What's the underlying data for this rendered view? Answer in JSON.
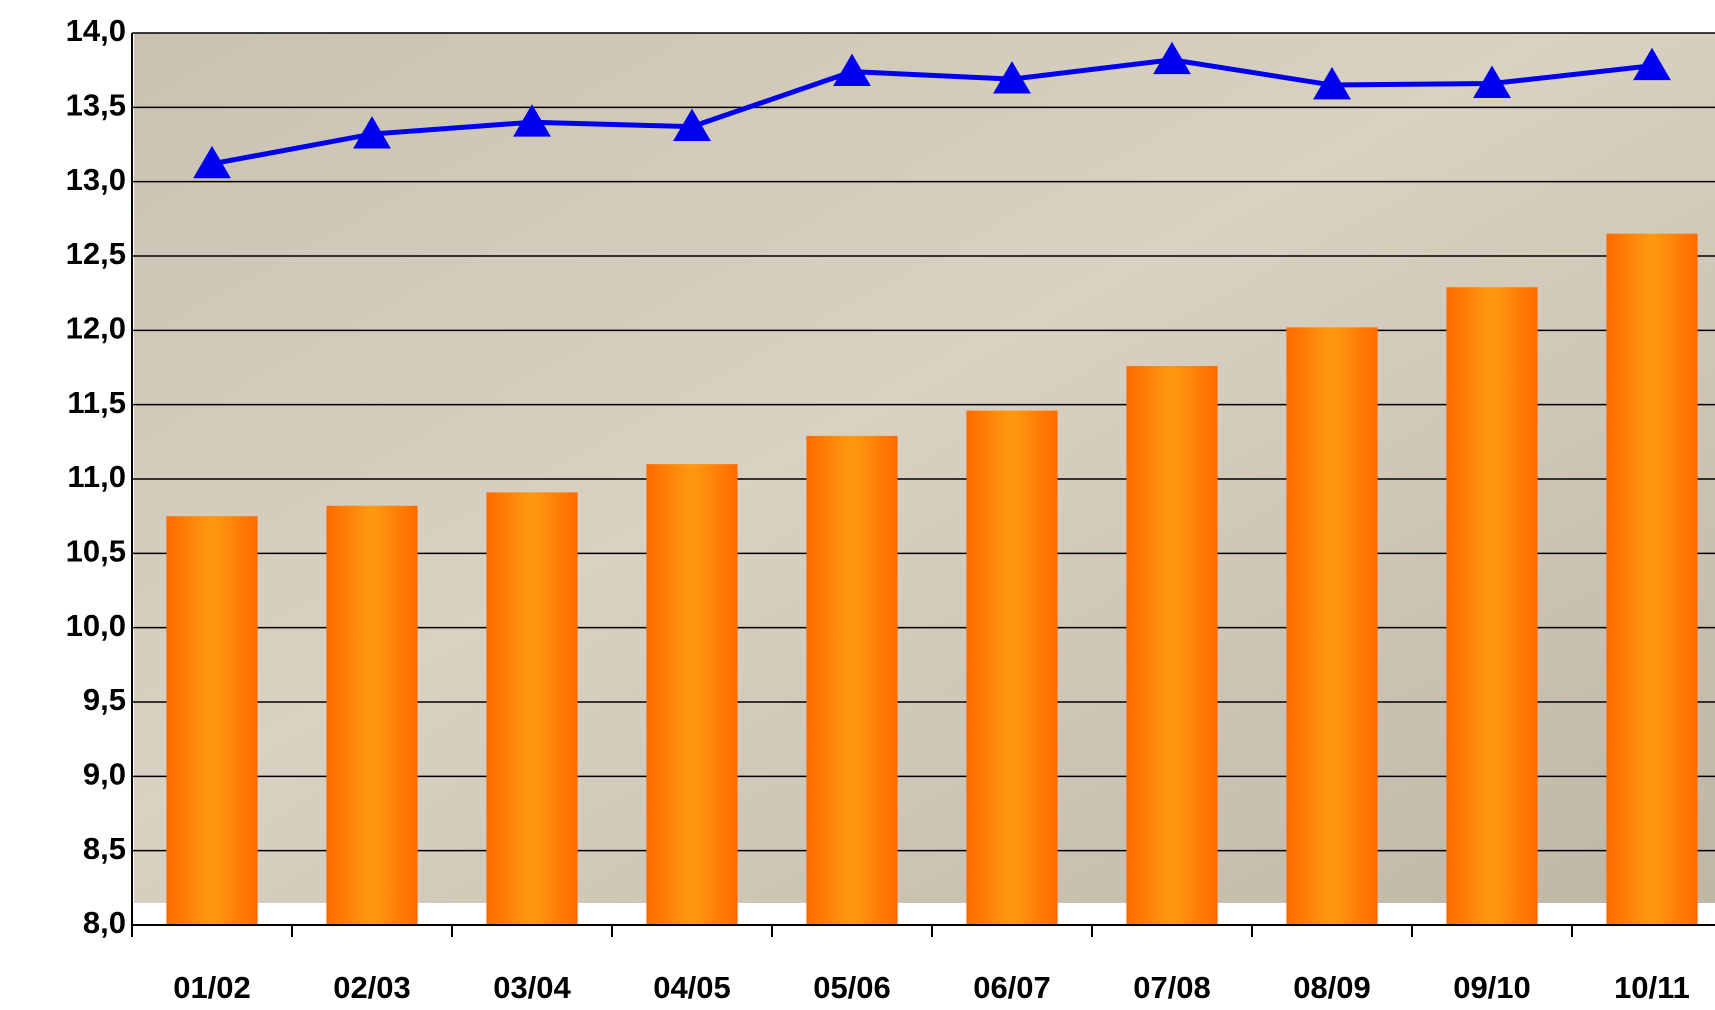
{
  "chart_data": {
    "type": "bar-line",
    "categories": [
      "01/02",
      "02/03",
      "03/04",
      "04/05",
      "05/06",
      "06/07",
      "07/08",
      "08/09",
      "09/10",
      "10/11"
    ],
    "series": [
      {
        "type": "bar",
        "color": "#ff7f00",
        "values": [
          10.75,
          10.82,
          10.91,
          11.1,
          11.29,
          11.46,
          11.76,
          12.02,
          12.29,
          12.65
        ]
      },
      {
        "type": "line",
        "color": "#0000ee",
        "values": [
          13.12,
          13.32,
          13.4,
          13.37,
          13.74,
          13.69,
          13.82,
          13.65,
          13.66,
          13.78
        ]
      }
    ],
    "ylim": [
      8.0,
      14.0
    ],
    "yticks": [
      {
        "value": 8.0,
        "label": "8,0"
      },
      {
        "value": 8.5,
        "label": "8,5"
      },
      {
        "value": 9.0,
        "label": "9,0"
      },
      {
        "value": 9.5,
        "label": "9,5"
      },
      {
        "value": 10.0,
        "label": "10,0"
      },
      {
        "value": 10.5,
        "label": "10,5"
      },
      {
        "value": 11.0,
        "label": "11,0"
      },
      {
        "value": 11.5,
        "label": "11,5"
      },
      {
        "value": 12.0,
        "label": "12,0"
      },
      {
        "value": 12.5,
        "label": "12,5"
      },
      {
        "value": 13.0,
        "label": "13,0"
      },
      {
        "value": 13.5,
        "label": "13,5"
      },
      {
        "value": 14.0,
        "label": "14,0"
      }
    ],
    "grid": true
  }
}
